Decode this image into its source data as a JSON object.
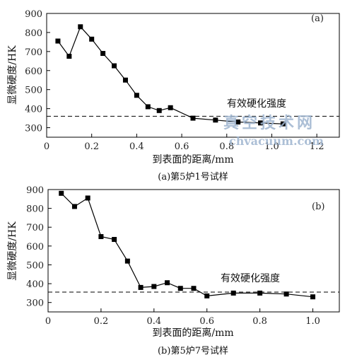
{
  "chart_data": [
    {
      "type": "line",
      "panel_label": "(a)",
      "caption": "(a)第5炉1号试样",
      "xlabel": "到表面的距离/mm",
      "ylabel": "显微硬度/HK",
      "xlim": [
        0,
        1.3
      ],
      "ylim": [
        250,
        900
      ],
      "x_ticks": [
        "0",
        "0.2",
        "0.4",
        "0.6",
        "0.8",
        "1.0",
        "1.2"
      ],
      "y_ticks": [
        "300",
        "400",
        "500",
        "600",
        "700",
        "800",
        "900"
      ],
      "reference_line": {
        "label": "有效硬化强度",
        "value": 360,
        "style": "dashed"
      },
      "marker": "square",
      "series": [
        {
          "x": [
            0.05,
            0.1,
            0.15,
            0.2,
            0.25,
            0.3,
            0.35,
            0.4,
            0.45,
            0.5,
            0.55,
            0.65,
            0.75,
            0.85,
            0.95,
            1.05
          ],
          "y": [
            755,
            675,
            830,
            765,
            690,
            625,
            550,
            470,
            410,
            390,
            405,
            350,
            340,
            330,
            325,
            320
          ]
        }
      ]
    },
    {
      "type": "line",
      "panel_label": "(b)",
      "caption": "(b)第5炉7号试样",
      "xlabel": "到表面的距离/mm",
      "ylabel": "显微硬度/HK",
      "xlim": [
        0,
        1.1
      ],
      "ylim": [
        250,
        900
      ],
      "x_ticks": [
        "0",
        "0.2",
        "0.4",
        "0.6",
        "0.8",
        "1.0"
      ],
      "y_ticks": [
        "300",
        "400",
        "500",
        "600",
        "700",
        "800",
        "900"
      ],
      "reference_line": {
        "label": "有效硬化强度",
        "value": 355,
        "style": "dashed"
      },
      "marker": "square",
      "series": [
        {
          "x": [
            0.05,
            0.1,
            0.15,
            0.2,
            0.25,
            0.3,
            0.35,
            0.4,
            0.45,
            0.5,
            0.55,
            0.6,
            0.7,
            0.8,
            0.9,
            1.0
          ],
          "y": [
            880,
            810,
            855,
            650,
            635,
            520,
            380,
            385,
            405,
            375,
            375,
            335,
            350,
            350,
            345,
            330
          ]
        }
      ]
    }
  ],
  "watermark": {
    "cn": "真空技术网",
    "en": "chvacuum.com",
    "color": "#9eb4cf"
  }
}
